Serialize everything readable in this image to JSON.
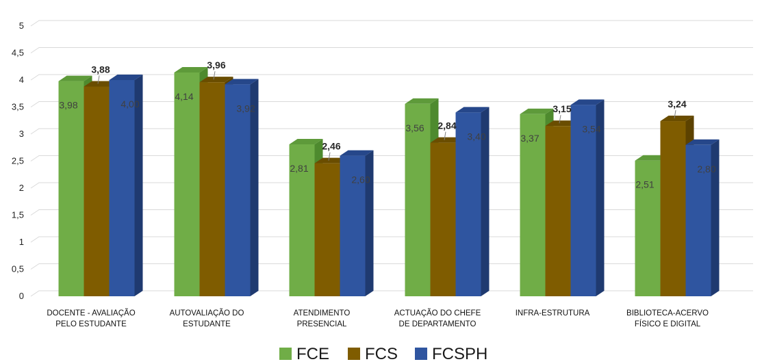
{
  "chart_data": {
    "type": "bar",
    "categories": [
      [
        "DOCENTE - AVALIAÇÃO",
        "PELO ESTUDANTE"
      ],
      [
        "AUTOVALIAÇÃO DO",
        "ESTUDANTE"
      ],
      [
        "ATENDIMENTO",
        "PRESENCIAL"
      ],
      [
        "ACTUAÇÃO DO CHEFE",
        "DE DEPARTAMENTO"
      ],
      [
        "INFRA-ESTRUTURA"
      ],
      [
        "BIBLIOTECA-ACERVO",
        "FÍSICO E DIGITAL"
      ]
    ],
    "series": [
      {
        "name": "FCE",
        "values": [
          3.98,
          4.14,
          2.81,
          3.56,
          3.37,
          2.51
        ],
        "labels": [
          "3,98",
          "4,14",
          "2,81",
          "3,56",
          "3,37",
          "2,51"
        ],
        "color": "#70ad47",
        "dark": "#4e8a2e",
        "top": "#5e9a3a"
      },
      {
        "name": "FCS",
        "values": [
          3.88,
          3.96,
          2.46,
          2.84,
          3.15,
          3.24
        ],
        "labels": [
          "3,88",
          "3,96",
          "2,46",
          "2,84",
          "3,15",
          "3,24"
        ],
        "color": "#7f5c00",
        "dark": "#5c4200",
        "top": "#6a4d00"
      },
      {
        "name": "FCSPH",
        "values": [
          4.0,
          3.92,
          2.6,
          3.4,
          3.54,
          2.8
        ],
        "labels": [
          "4,00",
          "3,92",
          "2,60",
          "3,40",
          "3,54",
          "2,80"
        ],
        "color": "#2f55a0",
        "dark": "#1f3a70",
        "top": "#26478a"
      }
    ],
    "yticks": [
      "0",
      "0,5",
      "1",
      "1,5",
      "2",
      "2,5",
      "3",
      "3,5",
      "4",
      "4,5",
      "5"
    ],
    "ylim": [
      0,
      5
    ],
    "grid": true,
    "legend": "bottom",
    "title": "",
    "xlabel": "",
    "ylabel": ""
  }
}
